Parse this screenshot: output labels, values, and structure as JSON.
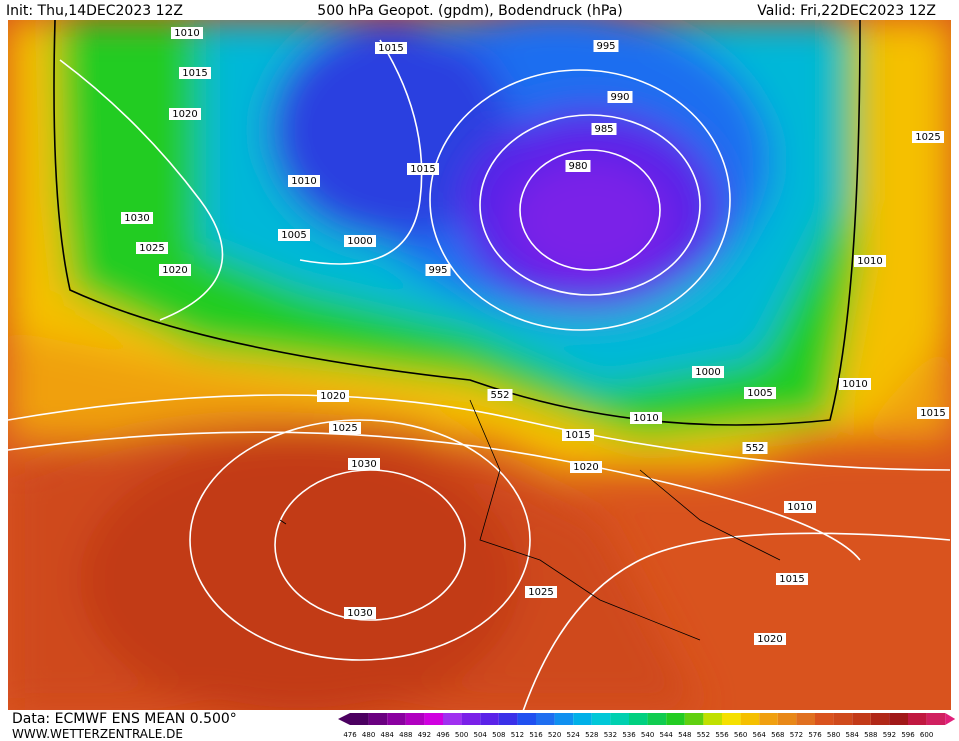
{
  "header": {
    "init": "Init: Thu,14DEC2023 12Z",
    "title": "500 hPa Geopot. (gpdm), Bodendruck (hPa)",
    "valid": "Valid: Fri,22DEC2023 12Z"
  },
  "map": {
    "isobar_labels": [
      "1010",
      "1015",
      "995",
      "1015",
      "990",
      "1020",
      "985",
      "1025",
      "1015",
      "980",
      "1010",
      "1030",
      "1005",
      "1000",
      "1025",
      "1020",
      "995",
      "1010",
      "1000",
      "1010",
      "1005",
      "552",
      "1020",
      "1010",
      "1015",
      "1025",
      "1015",
      "552",
      "1020",
      "1030",
      "1010",
      "1015",
      "1025",
      "1030",
      "1020"
    ]
  },
  "footer": {
    "source": "Data: ECMWF ENS MEAN 0.500°",
    "site": "WWW.WETTERZENTRALE.DE"
  },
  "colorbar": {
    "labels": [
      476,
      480,
      484,
      488,
      492,
      496,
      500,
      504,
      508,
      512,
      516,
      520,
      524,
      528,
      532,
      536,
      540,
      544,
      548,
      552,
      556,
      560,
      564,
      568,
      572,
      576,
      580,
      584,
      588,
      592,
      596,
      600
    ]
  }
}
